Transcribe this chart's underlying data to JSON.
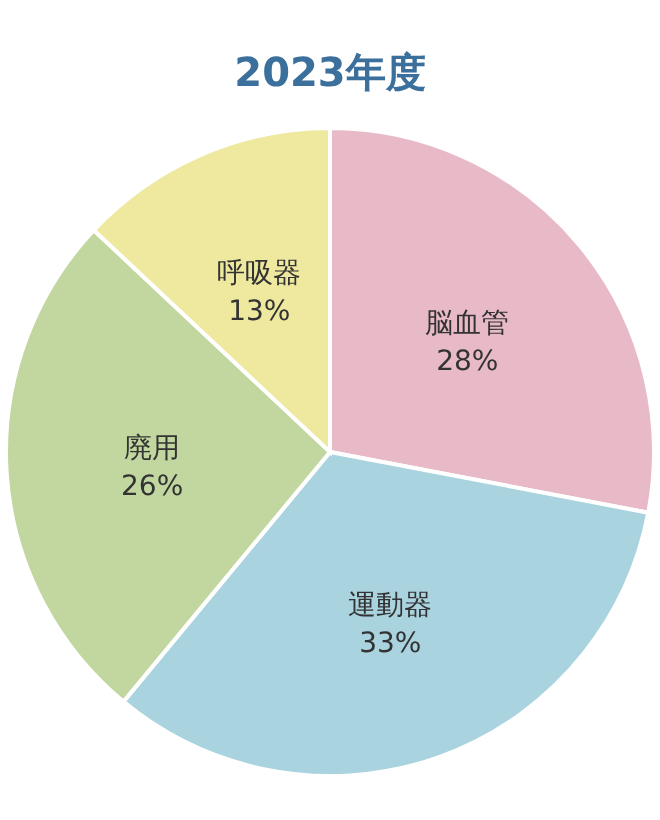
{
  "chart_data": {
    "type": "pie",
    "title": "2023年度",
    "categories": [
      "脳血管",
      "運動器",
      "廃用",
      "呼吸器"
    ],
    "values": [
      28,
      33,
      26,
      13
    ],
    "value_labels": [
      "28%",
      "33%",
      "26%",
      "13%"
    ],
    "colors": [
      "#e8bac8",
      "#a9d3df",
      "#c1d79f",
      "#efe99f"
    ]
  }
}
